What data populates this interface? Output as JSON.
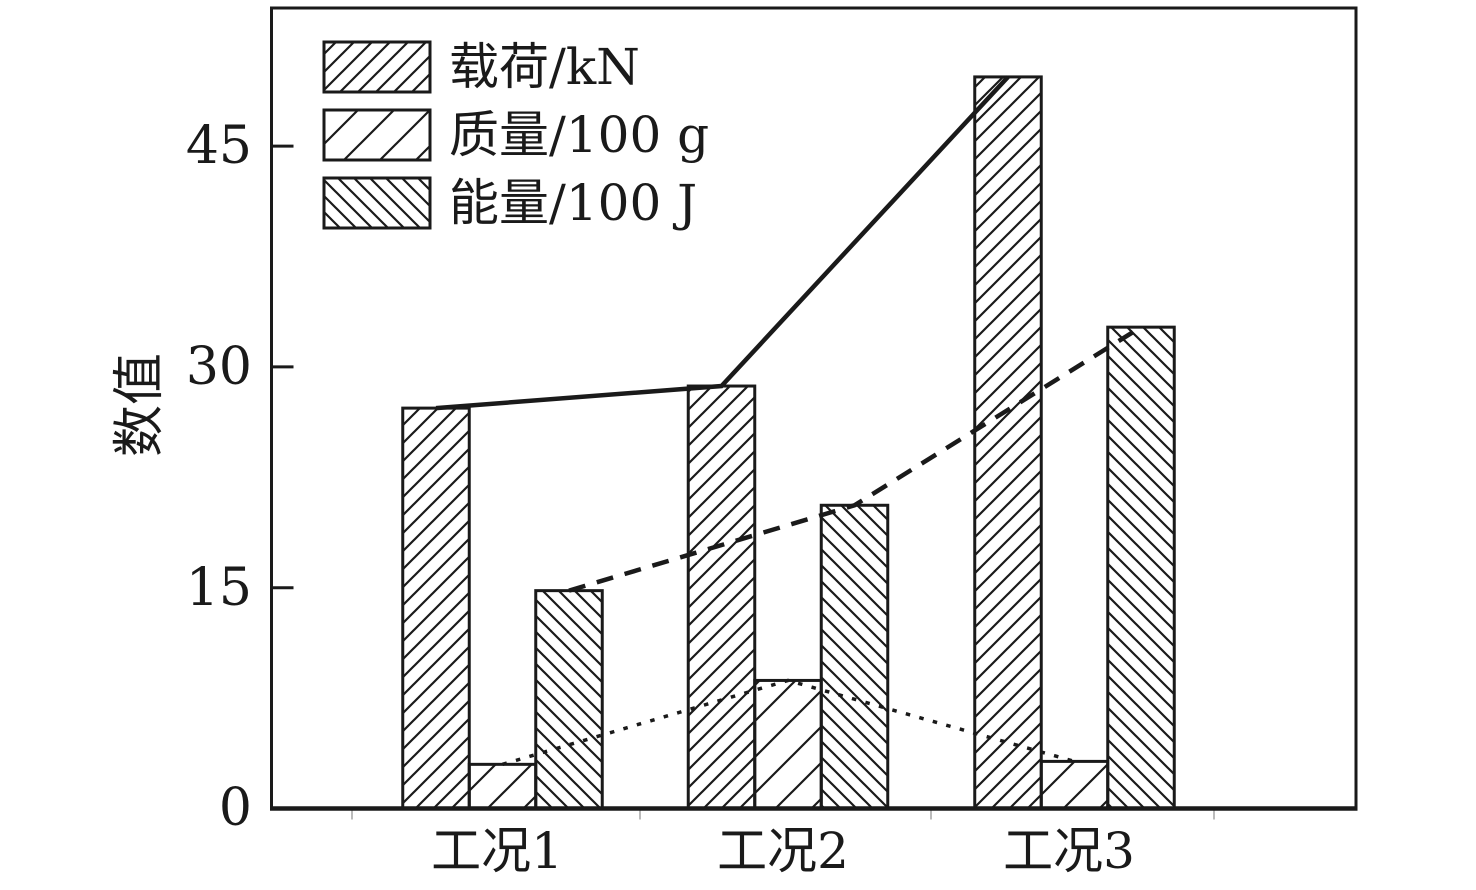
{
  "chart_data": {
    "type": "bar",
    "title": "",
    "xlabel": "",
    "ylabel": "数值",
    "categories": [
      "工况1",
      "工况2",
      "工况3"
    ],
    "yticks": [
      0,
      15,
      30,
      45
    ],
    "ylim": [
      0,
      54
    ],
    "grid": false,
    "background": "#ffffff",
    "ink_color": "#1a1a1a",
    "bar_fill": "#ffffff",
    "legend_position": "top-left-inside",
    "series": [
      {
        "name": "载荷/kN",
        "values": [
          27.2,
          28.7,
          49.7
        ],
        "hatch": "diagonal-forward-dense",
        "overlay_line_style": "solid"
      },
      {
        "name": "质量/100 g",
        "values": [
          3.0,
          8.7,
          3.2
        ],
        "hatch": "diagonal-forward-sparse",
        "overlay_line_style": "dotted"
      },
      {
        "name": "能量/100 J",
        "values": [
          14.8,
          20.6,
          32.7
        ],
        "hatch": "diagonal-backward-dense",
        "overlay_line_style": "dashed"
      }
    ]
  }
}
